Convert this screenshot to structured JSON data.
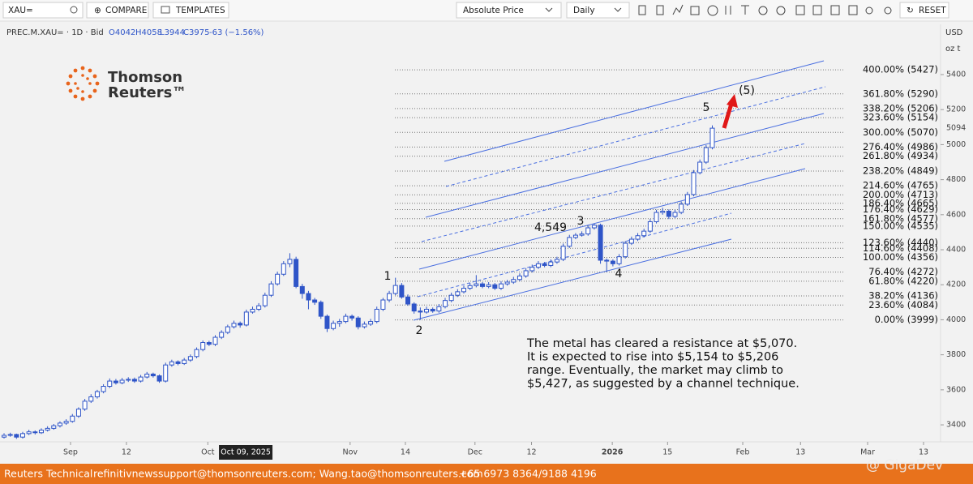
{
  "toolbar": {
    "symbol": "XAU=",
    "compare": "COMPARE",
    "templates": "TEMPLATES",
    "price_mode": "Absolute Price",
    "interval": "Daily",
    "reset": "RESET"
  },
  "legend": {
    "name": "PREC.M.XAU= · 1D · Bid",
    "open": "O4042",
    "high": "H4058",
    "low": "L3944",
    "close": "C3975",
    "change": "-63 (−1.56%)"
  },
  "axis_units": {
    "currency": "USD",
    "unit": "oz t"
  },
  "logo": [
    "Thomson",
    "Reuters™"
  ],
  "footer": {
    "source": "Reuters Technical",
    "emails": "refinitivnewssupport@thomsonreuters.com; Wang.tao@thomsonreuters.com",
    "phone": "+65 6973 8364/9188 4196",
    "watermark": "@ GigaDev"
  },
  "chart_data": {
    "type": "candlestick",
    "up_color": "#ffffff",
    "down_color": "#2f55c8",
    "line_color": "#2f55c8",
    "ylim": [
      3303,
      5687
    ],
    "yticks": [
      3400,
      3600,
      3800,
      4000,
      4200,
      4400,
      4600,
      4800,
      5000,
      5200,
      5400
    ],
    "xlim": [
      0,
      148
    ],
    "xticks": [
      {
        "value": 10.7,
        "label": "Sep"
      },
      {
        "value": 19.7,
        "label": "12"
      },
      {
        "value": 32.8,
        "label": "Oct"
      },
      {
        "value": 55.7,
        "label": "Nov"
      },
      {
        "value": 64.6,
        "label": "14"
      },
      {
        "value": 75.8,
        "label": "Dec"
      },
      {
        "value": 84.9,
        "label": "12"
      },
      {
        "value": 97.9,
        "label": "2026"
      },
      {
        "value": 106.8,
        "label": "15"
      },
      {
        "value": 118.9,
        "label": "Feb"
      },
      {
        "value": 128.2,
        "label": "13"
      },
      {
        "value": 139,
        "label": "Mar"
      },
      {
        "value": 148,
        "label": "13"
      }
    ],
    "crosshair": {
      "value": 38.9,
      "label": "Oct 09, 2025"
    },
    "last_price": 5094,
    "candles": [
      [
        3330,
        3352,
        3322,
        3340
      ],
      [
        3340,
        3355,
        3332,
        3345
      ],
      [
        3345,
        3350,
        3320,
        3330
      ],
      [
        3330,
        3360,
        3322,
        3350
      ],
      [
        3350,
        3372,
        3342,
        3360
      ],
      [
        3360,
        3368,
        3345,
        3355
      ],
      [
        3355,
        3380,
        3348,
        3370
      ],
      [
        3370,
        3392,
        3362,
        3380
      ],
      [
        3380,
        3405,
        3372,
        3395
      ],
      [
        3395,
        3420,
        3385,
        3410
      ],
      [
        3410,
        3432,
        3400,
        3420
      ],
      [
        3420,
        3462,
        3412,
        3450
      ],
      [
        3450,
        3500,
        3440,
        3490
      ],
      [
        3490,
        3548,
        3480,
        3535
      ],
      [
        3535,
        3575,
        3525,
        3560
      ],
      [
        3560,
        3600,
        3550,
        3590
      ],
      [
        3590,
        3632,
        3580,
        3620
      ],
      [
        3620,
        3665,
        3610,
        3650
      ],
      [
        3650,
        3662,
        3630,
        3640
      ],
      [
        3640,
        3668,
        3632,
        3655
      ],
      [
        3655,
        3672,
        3645,
        3660
      ],
      [
        3660,
        3670,
        3640,
        3650
      ],
      [
        3650,
        3685,
        3642,
        3673
      ],
      [
        3673,
        3702,
        3665,
        3690
      ],
      [
        3690,
        3698,
        3670,
        3680
      ],
      [
        3680,
        3688,
        3640,
        3650
      ],
      [
        3650,
        3755,
        3642,
        3742
      ],
      [
        3742,
        3772,
        3732,
        3760
      ],
      [
        3760,
        3768,
        3740,
        3750
      ],
      [
        3750,
        3782,
        3742,
        3770
      ],
      [
        3770,
        3802,
        3760,
        3790
      ],
      [
        3790,
        3842,
        3780,
        3830
      ],
      [
        3830,
        3882,
        3820,
        3870
      ],
      [
        3870,
        3880,
        3850,
        3860
      ],
      [
        3860,
        3912,
        3850,
        3900
      ],
      [
        3900,
        3940,
        3890,
        3928
      ],
      [
        3928,
        3972,
        3918,
        3960
      ],
      [
        3960,
        3995,
        3950,
        3980
      ],
      [
        3980,
        3990,
        3955,
        3970
      ],
      [
        3970,
        4058,
        3962,
        4044
      ],
      [
        4044,
        4075,
        4035,
        4060
      ],
      [
        4060,
        4095,
        4050,
        4080
      ],
      [
        4080,
        4155,
        4070,
        4140
      ],
      [
        4140,
        4220,
        4130,
        4205
      ],
      [
        4205,
        4275,
        4195,
        4260
      ],
      [
        4260,
        4335,
        4250,
        4320
      ],
      [
        4320,
        4380,
        4300,
        4345
      ],
      [
        4345,
        4360,
        4180,
        4190
      ],
      [
        4190,
        4205,
        4120,
        4150
      ],
      [
        4150,
        4165,
        4060,
        4113
      ],
      [
        4113,
        4125,
        4085,
        4100
      ],
      [
        4100,
        4110,
        4005,
        4020
      ],
      [
        4020,
        4030,
        3930,
        3950
      ],
      [
        3950,
        3995,
        3940,
        3980
      ],
      [
        3980,
        4005,
        3960,
        3990
      ],
      [
        3990,
        4035,
        3980,
        4020
      ],
      [
        4020,
        4030,
        3995,
        4010
      ],
      [
        4010,
        4020,
        3945,
        3960
      ],
      [
        3960,
        3990,
        3950,
        3975
      ],
      [
        3975,
        4005,
        3965,
        3990
      ],
      [
        3990,
        4075,
        3980,
        4060
      ],
      [
        4060,
        4125,
        4050,
        4113
      ],
      [
        4113,
        4165,
        4100,
        4150
      ],
      [
        4150,
        4240,
        4140,
        4196
      ],
      [
        4196,
        4210,
        4120,
        4130
      ],
      [
        4130,
        4145,
        4080,
        4090
      ],
      [
        4090,
        4100,
        4035,
        4050
      ],
      [
        4050,
        4070,
        3999,
        4044
      ],
      [
        4044,
        4075,
        4035,
        4060
      ],
      [
        4060,
        4070,
        4040,
        4050
      ],
      [
        4050,
        4090,
        4040,
        4075
      ],
      [
        4075,
        4125,
        4065,
        4110
      ],
      [
        4110,
        4155,
        4100,
        4140
      ],
      [
        4140,
        4175,
        4130,
        4160
      ],
      [
        4160,
        4195,
        4150,
        4180
      ],
      [
        4180,
        4210,
        4170,
        4195
      ],
      [
        4195,
        4255,
        4185,
        4205
      ],
      [
        4205,
        4215,
        4180,
        4190
      ],
      [
        4190,
        4215,
        4180,
        4200
      ],
      [
        4200,
        4210,
        4170,
        4180
      ],
      [
        4180,
        4220,
        4170,
        4205
      ],
      [
        4205,
        4228,
        4195,
        4215
      ],
      [
        4215,
        4245,
        4205,
        4230
      ],
      [
        4230,
        4265,
        4220,
        4250
      ],
      [
        4250,
        4295,
        4240,
        4280
      ],
      [
        4280,
        4315,
        4270,
        4300
      ],
      [
        4300,
        4335,
        4290,
        4320
      ],
      [
        4320,
        4330,
        4300,
        4310
      ],
      [
        4310,
        4345,
        4300,
        4330
      ],
      [
        4330,
        4360,
        4320,
        4345
      ],
      [
        4345,
        4435,
        4335,
        4420
      ],
      [
        4420,
        4485,
        4410,
        4470
      ],
      [
        4470,
        4495,
        4460,
        4483
      ],
      [
        4483,
        4505,
        4475,
        4490
      ],
      [
        4490,
        4540,
        4480,
        4525
      ],
      [
        4525,
        4549,
        4515,
        4540
      ],
      [
        4540,
        4549,
        4320,
        4340
      ],
      [
        4340,
        4350,
        4272,
        4335
      ],
      [
        4335,
        4345,
        4305,
        4320
      ],
      [
        4320,
        4375,
        4310,
        4360
      ],
      [
        4360,
        4450,
        4350,
        4437
      ],
      [
        4437,
        4475,
        4427,
        4460
      ],
      [
        4460,
        4495,
        4450,
        4480
      ],
      [
        4480,
        4520,
        4470,
        4506
      ],
      [
        4506,
        4575,
        4496,
        4560
      ],
      [
        4560,
        4628,
        4550,
        4613
      ],
      [
        4613,
        4640,
        4600,
        4620
      ],
      [
        4620,
        4630,
        4575,
        4590
      ],
      [
        4590,
        4628,
        4580,
        4613
      ],
      [
        4613,
        4675,
        4603,
        4660
      ],
      [
        4660,
        4730,
        4650,
        4715
      ],
      [
        4715,
        4855,
        4705,
        4840
      ],
      [
        4840,
        4915,
        4830,
        4900
      ],
      [
        4900,
        4998,
        4890,
        4983
      ],
      [
        4983,
        5110,
        4973,
        5094
      ]
    ],
    "levels": [
      {
        "value": 5427,
        "label": "400.00% (5427)"
      },
      {
        "value": 5290,
        "label": "361.80% (5290)"
      },
      {
        "value": 5206,
        "label": "338.20% (5206)"
      },
      {
        "value": 5154,
        "label": "323.60% (5154)"
      },
      {
        "value": 5070,
        "label": "300.00% (5070)"
      },
      {
        "value": 4986,
        "label": "276.40% (4986)"
      },
      {
        "value": 4934,
        "label": "261.80% (4934)"
      },
      {
        "value": 4849,
        "label": "238.20% (4849)"
      },
      {
        "value": 4765,
        "label": "214.60% (4765)"
      },
      {
        "value": 4713,
        "label": "200.00% (4713)"
      },
      {
        "value": 4665,
        "label": "186.40% (4665)"
      },
      {
        "value": 4629,
        "label": "176.40% (4629)"
      },
      {
        "value": 4577,
        "label": "161.80% (4577)"
      },
      {
        "value": 4535,
        "label": "150.00% (4535)"
      },
      {
        "value": 4440,
        "label": "123.60% (4440)"
      },
      {
        "value": 4408,
        "label": "114.60% (4408)"
      },
      {
        "value": 4356,
        "label": "100.00% (4356)"
      },
      {
        "value": 4272,
        "label": "76.40% (4272)"
      },
      {
        "value": 4220,
        "label": "61.80% (4220)"
      },
      {
        "value": 4136,
        "label": "38.20% (4136)"
      },
      {
        "value": 4084,
        "label": "23.60% (4084)"
      },
      {
        "value": 3999,
        "label": "0.00% (3999)"
      }
    ],
    "wave_labels": [
      "1",
      "2",
      "3",
      "4",
      "5",
      "(5)",
      "4,549"
    ],
    "comment": [
      "The metal has cleared a resistance at $5,070.",
      "It is expected to rise into $5,154 to $5,206",
      "range. Eventually, the market may climb to",
      "$5,427, as suggested by a channel technique."
    ]
  }
}
